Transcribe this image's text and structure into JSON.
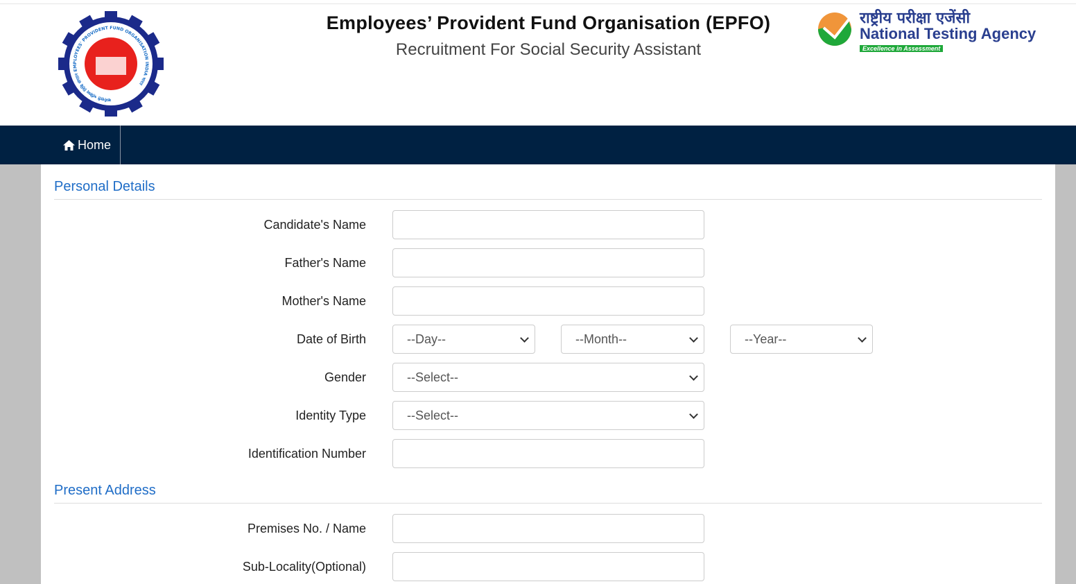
{
  "header": {
    "title": "Employees’ Provident Fund Organisation (EPFO)",
    "subtitle": "Recruitment For Social Security Assistant",
    "epfo_logo_text": "कर्मचारी भविष्य निधि संगठन EMPLOYEES' PROVIDENT FUND ORGANISATION INDIA भारत",
    "nta": {
      "hindi": "राष्ट्रीय परीक्षा एजेंसी",
      "english": "National Testing Agency",
      "tagline": "Excellence in Assessment"
    }
  },
  "nav": {
    "home": "Home",
    "icon": "home-icon"
  },
  "colors": {
    "nav": "#002142",
    "section": "#1f6dc7",
    "side": "#c0c0c0"
  },
  "personal": {
    "heading": "Personal Details",
    "candidate_name": "Candidate's Name",
    "father_name": "Father's Name",
    "mother_name": "Mother's Name",
    "dob": "Date of Birth",
    "day": "--Day--",
    "month": "--Month--",
    "year": "--Year--",
    "gender": "Gender",
    "gender_value": "--Select--",
    "id_type": "Identity Type",
    "id_type_value": "--Select--",
    "id_number": "Identification Number"
  },
  "address": {
    "heading": "Present Address",
    "premises": "Premises No. / Name",
    "sublocality": "Sub-Locality(Optional)"
  }
}
